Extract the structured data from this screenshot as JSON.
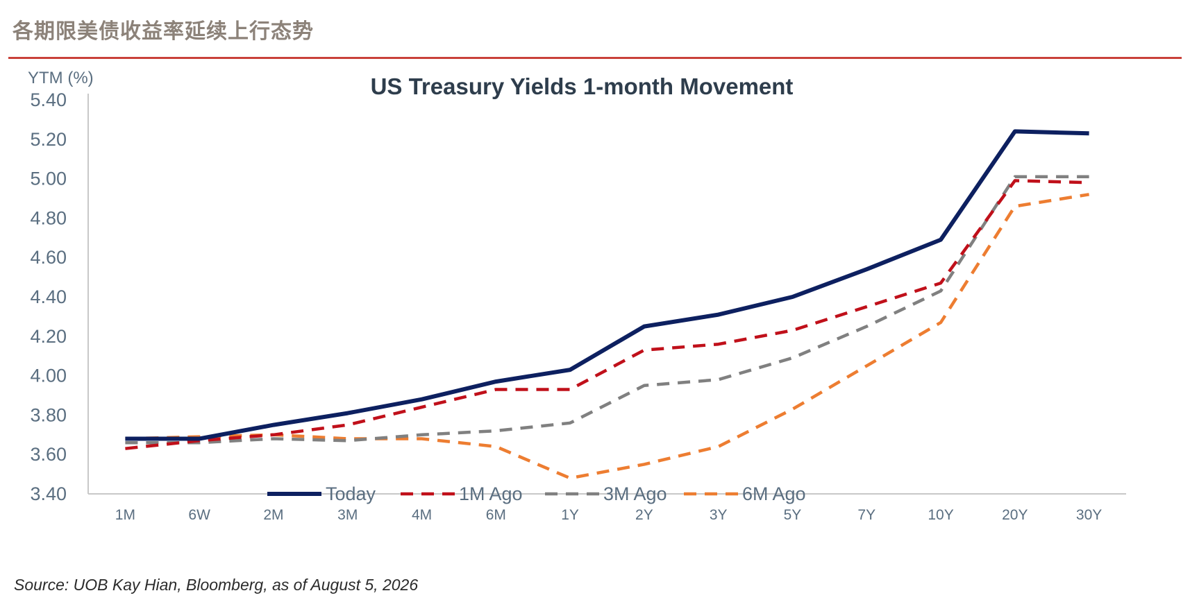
{
  "heading": "各期限美债收益率延续上行态势",
  "source": "Source: UOB Kay Hian, Bloomberg, as of August 5, 2026",
  "colors": {
    "heading_rule": "#c9413a",
    "axis_text": "#5a6e80",
    "today": "#0d2060",
    "one_month_ago": "#c0101a",
    "three_months_ago": "#808080",
    "six_months_ago": "#ed7d31"
  },
  "chart_data": {
    "type": "line",
    "title": "US Treasury Yields 1-month Movement",
    "ylabel": "YTM (%)",
    "xlabel": "",
    "ylim": [
      3.4,
      5.4
    ],
    "yticks": [
      "3.40",
      "3.60",
      "3.80",
      "4.00",
      "4.20",
      "4.40",
      "4.60",
      "4.80",
      "5.00",
      "5.20",
      "5.40"
    ],
    "categories": [
      "1M",
      "6W",
      "2M",
      "3M",
      "4M",
      "6M",
      "1Y",
      "2Y",
      "3Y",
      "5Y",
      "7Y",
      "10Y",
      "20Y",
      "30Y"
    ],
    "grid": false,
    "legend_position": "bottom",
    "series": [
      {
        "name": "Today",
        "style": "solid",
        "color": "#0d2060",
        "values": [
          3.68,
          3.68,
          3.75,
          3.81,
          3.88,
          3.97,
          4.03,
          4.25,
          4.31,
          4.4,
          4.54,
          4.69,
          5.24,
          5.23
        ]
      },
      {
        "name": "1M Ago",
        "style": "dashed",
        "color": "#c0101a",
        "values": [
          3.63,
          3.67,
          3.7,
          3.75,
          3.84,
          3.93,
          3.93,
          4.13,
          4.16,
          4.23,
          4.35,
          4.47,
          4.99,
          4.98
        ]
      },
      {
        "name": "3M Ago",
        "style": "dashed",
        "color": "#808080",
        "values": [
          3.66,
          3.66,
          3.68,
          3.67,
          3.7,
          3.72,
          3.76,
          3.95,
          3.98,
          4.09,
          4.25,
          4.43,
          5.01,
          5.01
        ]
      },
      {
        "name": "6M Ago",
        "style": "dashed",
        "color": "#ed7d31",
        "values": [
          3.68,
          3.69,
          3.7,
          3.68,
          3.68,
          3.64,
          3.48,
          3.55,
          3.64,
          3.83,
          4.05,
          4.27,
          4.86,
          4.92
        ]
      }
    ]
  }
}
